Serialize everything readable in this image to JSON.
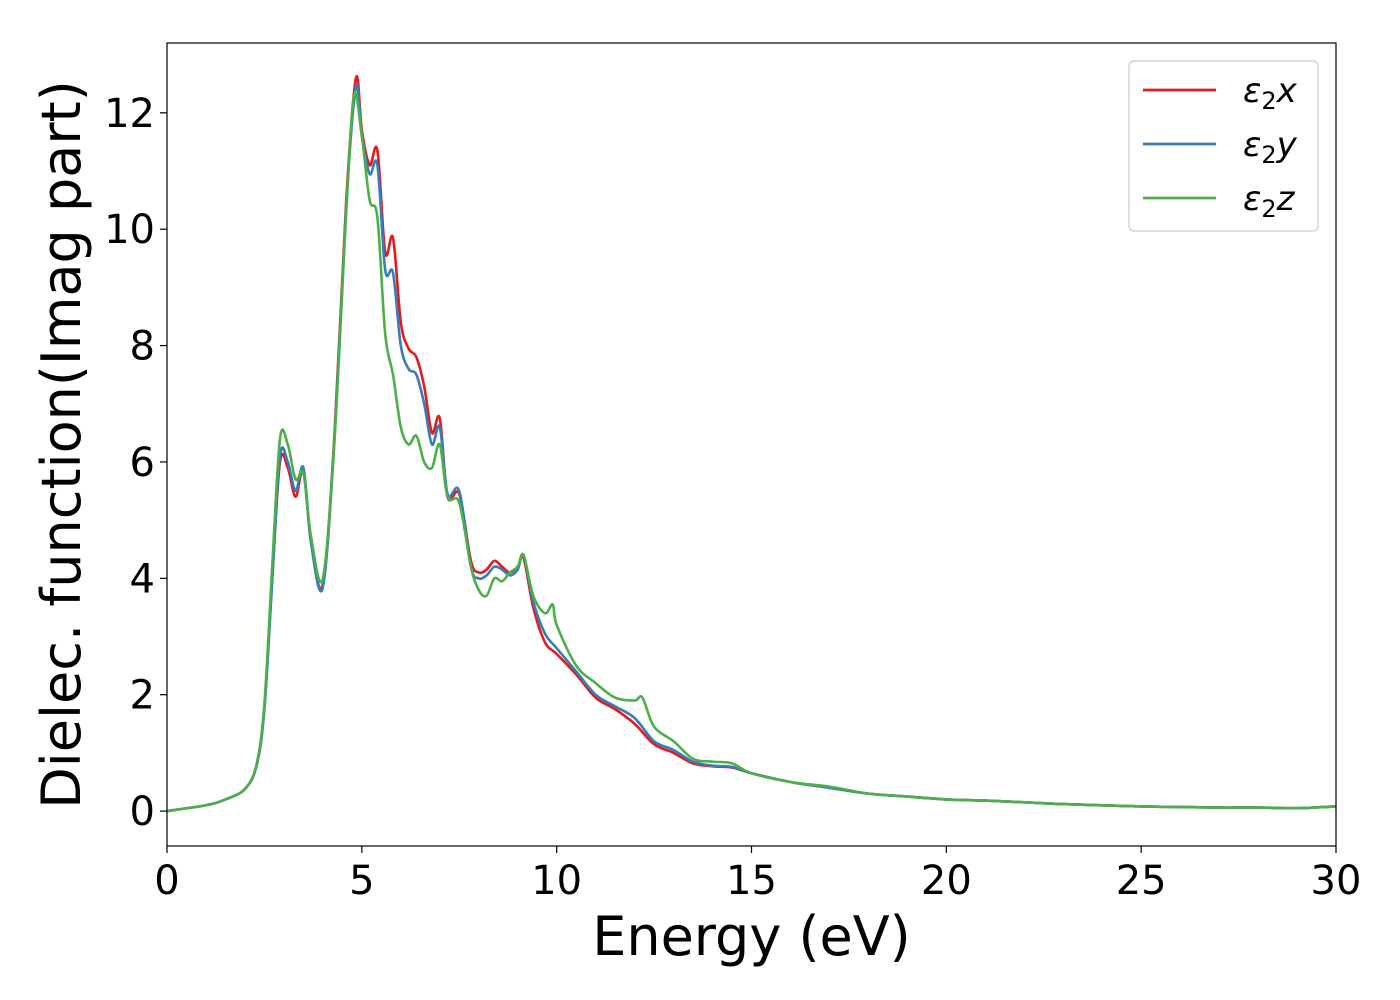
{
  "chart_data": {
    "type": "line",
    "title": "",
    "xlabel": "Energy (eV)",
    "ylabel": "Dielec. function(Imag part)",
    "xlim": [
      0,
      30
    ],
    "ylim": [
      -0.6,
      13.2
    ],
    "xticks": [
      0,
      5,
      10,
      15,
      20,
      25,
      30
    ],
    "yticks": [
      0,
      2,
      4,
      6,
      8,
      10,
      12
    ],
    "grid": false,
    "legend_position": "top-right",
    "series": [
      {
        "name": "ε₂x",
        "legend_main": "ε",
        "legend_sub": "2",
        "legend_suffix": "x",
        "color": "#e41a1c",
        "x": [
          0,
          1,
          1.5,
          2,
          2.3,
          2.5,
          2.7,
          2.9,
          3.1,
          3.3,
          3.5,
          3.7,
          4.0,
          4.3,
          4.6,
          4.85,
          5.0,
          5.2,
          5.4,
          5.6,
          5.8,
          6.0,
          6.2,
          6.4,
          6.6,
          6.8,
          7.0,
          7.2,
          7.5,
          7.8,
          8.0,
          8.2,
          8.4,
          8.6,
          8.8,
          9.0,
          9.15,
          9.4,
          9.7,
          10.0,
          10.5,
          11.0,
          11.5,
          12.0,
          12.5,
          13.0,
          13.5,
          14.0,
          14.5,
          15.0,
          16.0,
          17.0,
          18.0,
          19.0,
          20.0,
          21.0,
          22.0,
          23.0,
          24.0,
          25.0,
          26.0,
          27.0,
          28.0,
          29.0,
          30.0
        ],
        "y": [
          0.0,
          0.1,
          0.2,
          0.38,
          0.8,
          1.8,
          4.0,
          6.0,
          5.9,
          5.4,
          5.85,
          4.6,
          3.9,
          6.5,
          10.5,
          12.6,
          11.7,
          11.1,
          11.35,
          9.6,
          9.85,
          8.4,
          7.95,
          7.8,
          7.3,
          6.5,
          6.75,
          5.4,
          5.45,
          4.3,
          4.1,
          4.15,
          4.3,
          4.2,
          4.1,
          4.2,
          4.35,
          3.5,
          2.9,
          2.7,
          2.35,
          1.95,
          1.75,
          1.5,
          1.15,
          1.0,
          0.82,
          0.77,
          0.75,
          0.65,
          0.5,
          0.4,
          0.3,
          0.25,
          0.2,
          0.18,
          0.15,
          0.12,
          0.1,
          0.08,
          0.07,
          0.06,
          0.06,
          0.05,
          0.08
        ]
      },
      {
        "name": "ε₂y",
        "legend_main": "ε",
        "legend_sub": "2",
        "legend_suffix": "y",
        "color": "#377eb8",
        "x": [
          0,
          1,
          1.5,
          2,
          2.3,
          2.5,
          2.7,
          2.9,
          3.1,
          3.3,
          3.5,
          3.7,
          4.0,
          4.3,
          4.6,
          4.85,
          5.0,
          5.2,
          5.4,
          5.6,
          5.8,
          6.0,
          6.2,
          6.4,
          6.6,
          6.8,
          7.0,
          7.2,
          7.5,
          7.8,
          8.0,
          8.2,
          8.4,
          8.6,
          8.8,
          9.0,
          9.15,
          9.4,
          9.7,
          10.0,
          10.5,
          11.0,
          11.5,
          12.0,
          12.5,
          13.0,
          13.5,
          14.0,
          14.5,
          15.0,
          16.0,
          17.0,
          18.0,
          19.0,
          20.0,
          21.0,
          22.0,
          23.0,
          24.0,
          25.0,
          26.0,
          27.0,
          28.0,
          29.0,
          30.0
        ],
        "y": [
          0.0,
          0.1,
          0.2,
          0.38,
          0.78,
          1.75,
          3.95,
          6.1,
          6.0,
          5.5,
          5.9,
          4.6,
          3.85,
          6.4,
          10.4,
          12.45,
          11.6,
          10.95,
          11.1,
          9.3,
          9.25,
          8.0,
          7.6,
          7.5,
          7.0,
          6.3,
          6.6,
          5.45,
          5.5,
          4.2,
          4.0,
          4.05,
          4.2,
          4.15,
          4.05,
          4.15,
          4.4,
          3.6,
          3.05,
          2.8,
          2.4,
          2.0,
          1.8,
          1.6,
          1.2,
          1.05,
          0.85,
          0.78,
          0.76,
          0.65,
          0.5,
          0.4,
          0.3,
          0.25,
          0.2,
          0.18,
          0.15,
          0.12,
          0.1,
          0.08,
          0.07,
          0.06,
          0.06,
          0.05,
          0.08
        ]
      },
      {
        "name": "ε₂z",
        "legend_main": "ε",
        "legend_sub": "2",
        "legend_suffix": "z",
        "color": "#4daf4a",
        "x": [
          0,
          1,
          1.5,
          2,
          2.3,
          2.5,
          2.7,
          2.9,
          3.1,
          3.3,
          3.5,
          3.7,
          4.0,
          4.3,
          4.6,
          4.8,
          5.0,
          5.2,
          5.4,
          5.6,
          5.8,
          6.0,
          6.2,
          6.4,
          6.6,
          6.8,
          7.0,
          7.2,
          7.5,
          7.8,
          8.0,
          8.2,
          8.4,
          8.6,
          8.8,
          9.0,
          9.15,
          9.4,
          9.7,
          9.9,
          10.0,
          10.5,
          11.0,
          11.5,
          12.0,
          12.2,
          12.5,
          13.0,
          13.5,
          14.0,
          14.5,
          15.0,
          16.0,
          17.0,
          18.0,
          19.0,
          20.0,
          21.0,
          22.0,
          23.0,
          24.0,
          25.0,
          26.0,
          27.0,
          28.0,
          29.0,
          30.0
        ],
        "y": [
          0.0,
          0.1,
          0.2,
          0.38,
          0.8,
          1.85,
          4.2,
          6.4,
          6.3,
          5.7,
          5.8,
          4.7,
          4.0,
          6.4,
          10.3,
          12.3,
          11.6,
          10.5,
          10.2,
          8.2,
          7.5,
          6.6,
          6.3,
          6.45,
          6.0,
          5.9,
          6.3,
          5.4,
          5.3,
          4.2,
          3.8,
          3.7,
          4.0,
          3.95,
          4.1,
          4.2,
          4.4,
          3.7,
          3.4,
          3.55,
          3.2,
          2.5,
          2.2,
          1.95,
          1.9,
          1.95,
          1.45,
          1.2,
          0.9,
          0.85,
          0.82,
          0.65,
          0.5,
          0.42,
          0.3,
          0.25,
          0.2,
          0.18,
          0.15,
          0.12,
          0.1,
          0.08,
          0.07,
          0.06,
          0.06,
          0.05,
          0.08
        ]
      }
    ]
  }
}
